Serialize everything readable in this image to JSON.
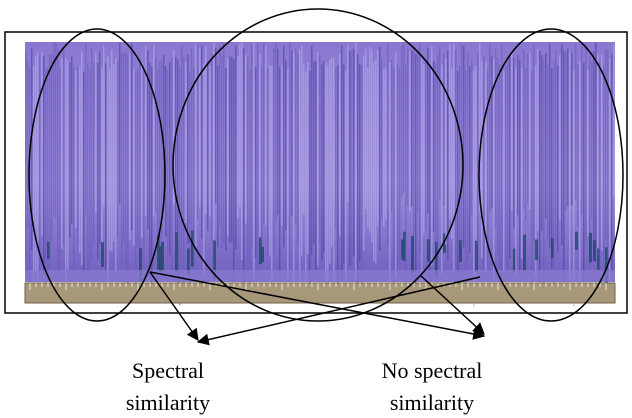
{
  "annotations": {
    "left": {
      "lines": [
        "Spectral",
        "similarity"
      ]
    },
    "right": {
      "lines": [
        "No spectral",
        "similarity"
      ]
    }
  }
}
